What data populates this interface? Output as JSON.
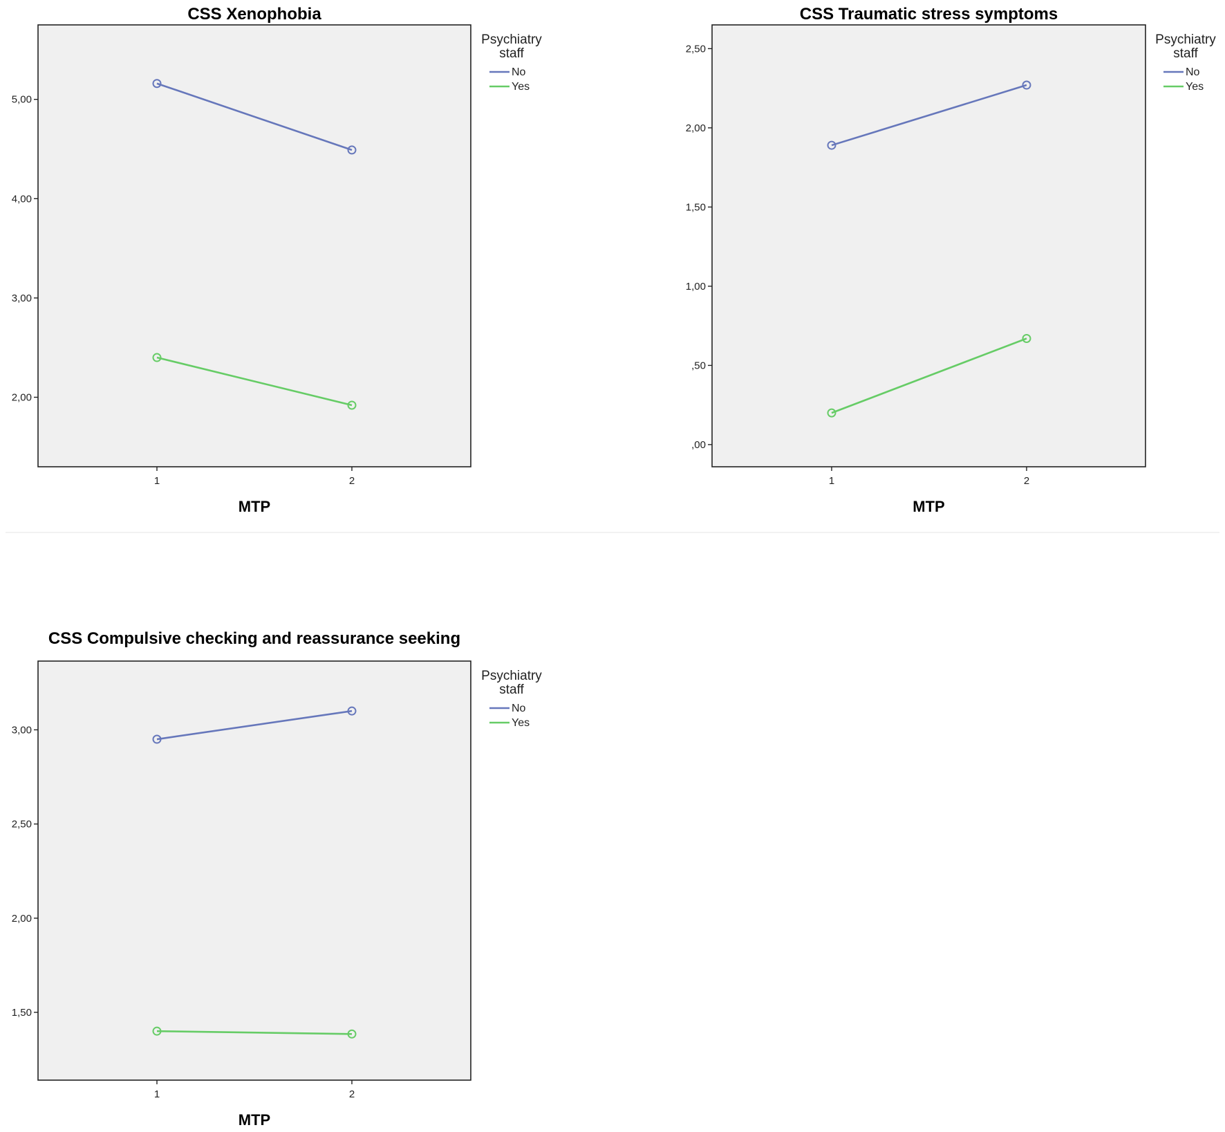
{
  "chart_data": [
    {
      "type": "line",
      "title": "CSS Xenophobia",
      "xlabel": "MTP",
      "ylabel": "",
      "categories": [
        "1",
        "2"
      ],
      "ylim": [
        1.3,
        5.75
      ],
      "yticks": [
        2.0,
        3.0,
        4.0,
        5.0
      ],
      "ytick_labels": [
        "2,00",
        "3,00",
        "4,00",
        "5,00"
      ],
      "legend": {
        "title_lines": [
          "Psychiatry",
          "staff"
        ],
        "placement": "right"
      },
      "series": [
        {
          "name": "No",
          "color": "#6677bb",
          "values": [
            5.16,
            4.49
          ]
        },
        {
          "name": "Yes",
          "color": "#66cc66",
          "values": [
            2.4,
            1.92
          ]
        }
      ]
    },
    {
      "type": "line",
      "title": "CSS Traumatic stress symptoms",
      "xlabel": "MTP",
      "ylabel": "",
      "categories": [
        "1",
        "2"
      ],
      "ylim": [
        -0.14,
        2.65
      ],
      "yticks": [
        0.0,
        0.5,
        1.0,
        1.5,
        2.0,
        2.5
      ],
      "ytick_labels": [
        ",00",
        ",50",
        "1,00",
        "1,50",
        "2,00",
        "2,50"
      ],
      "legend": {
        "title_lines": [
          "Psychiatry",
          "staff"
        ],
        "placement": "right"
      },
      "series": [
        {
          "name": "No",
          "color": "#6677bb",
          "values": [
            1.89,
            2.27
          ]
        },
        {
          "name": "Yes",
          "color": "#66cc66",
          "values": [
            0.2,
            0.67
          ]
        }
      ]
    },
    {
      "type": "line",
      "title": "CSS Compulsive checking and reassurance seeking",
      "xlabel": "MTP",
      "ylabel": "",
      "categories": [
        "1",
        "2"
      ],
      "ylim": [
        1.14,
        3.365
      ],
      "yticks": [
        1.5,
        2.0,
        2.5,
        3.0
      ],
      "ytick_labels": [
        "1,50",
        "2,00",
        "2,50",
        "3,00"
      ],
      "legend": {
        "title_lines": [
          "Psychiatry",
          "staff"
        ],
        "placement": "right"
      },
      "series": [
        {
          "name": "No",
          "color": "#6677bb",
          "values": [
            2.95,
            3.1
          ]
        },
        {
          "name": "Yes",
          "color": "#66cc66",
          "values": [
            1.4,
            1.385
          ]
        }
      ]
    }
  ]
}
